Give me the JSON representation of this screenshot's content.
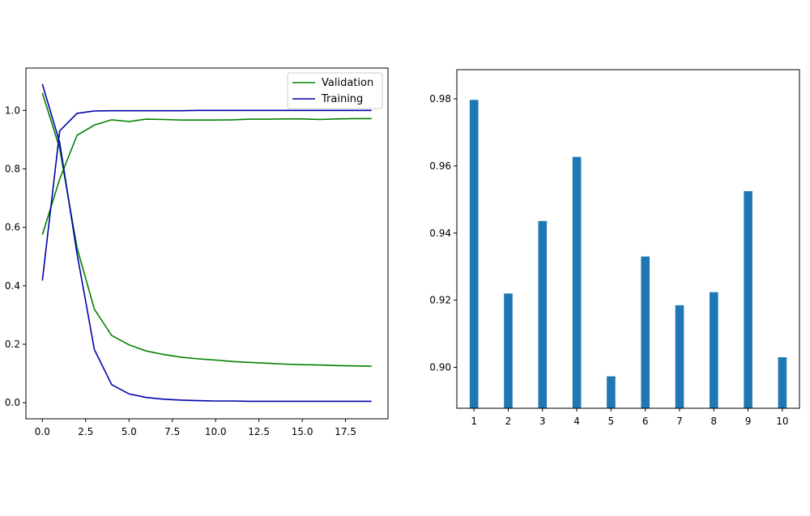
{
  "chart_data": [
    {
      "type": "line",
      "title": "",
      "xlabel": "",
      "ylabel": "",
      "xlim": [
        -0.95,
        19.95
      ],
      "ylim": [
        -0.055,
        1.145
      ],
      "xticks": [
        0,
        2.5,
        5,
        7.5,
        10,
        12.5,
        15,
        17.5
      ],
      "xtick_labels": [
        "0.0",
        "2.5",
        "5.0",
        "7.5",
        "10.0",
        "12.5",
        "15.0",
        "17.5"
      ],
      "yticks": [
        0,
        0.2,
        0.4,
        0.6,
        0.8,
        1.0
      ],
      "ytick_labels": [
        "0.0",
        "0.2",
        "0.4",
        "0.6",
        "0.8",
        "1.0"
      ],
      "legend": {
        "placement": "top-right",
        "entries": [
          "Validation",
          "Training"
        ]
      },
      "grid": false,
      "x": [
        0,
        1,
        2,
        3,
        4,
        5,
        6,
        7,
        8,
        9,
        10,
        11,
        12,
        13,
        14,
        15,
        16,
        17,
        18,
        19
      ],
      "series": [
        {
          "name": "Validation",
          "color": "#008000",
          "lines": [
            [
              0.575,
              0.765,
              0.915,
              0.95,
              0.968,
              0.962,
              0.97,
              0.969,
              0.967,
              0.967,
              0.967,
              0.968,
              0.97,
              0.97,
              0.971,
              0.971,
              0.969,
              0.971,
              0.972,
              0.972
            ],
            [
              1.06,
              0.87,
              0.53,
              0.32,
              0.23,
              0.198,
              0.177,
              0.165,
              0.156,
              0.15,
              0.146,
              0.141,
              0.138,
              0.135,
              0.132,
              0.13,
              0.129,
              0.127,
              0.126,
              0.125
            ]
          ]
        },
        {
          "name": "Training",
          "color": "#0000aa",
          "lines": [
            [
              0.418,
              0.93,
              0.99,
              0.998,
              0.999,
              0.999,
              0.999,
              0.999,
              0.999,
              1.0,
              1.0,
              1.0,
              1.0,
              1.0,
              1.0,
              1.0,
              1.0,
              1.0,
              1.0,
              1.0
            ],
            [
              1.09,
              0.89,
              0.51,
              0.182,
              0.062,
              0.03,
              0.018,
              0.012,
              0.009,
              0.007,
              0.006,
              0.006,
              0.005,
              0.005,
              0.005,
              0.005,
              0.005,
              0.005,
              0.005,
              0.005
            ]
          ]
        }
      ]
    },
    {
      "type": "bar",
      "title": "",
      "xlabel": "",
      "ylabel": "",
      "categories": [
        "1",
        "2",
        "3",
        "4",
        "5",
        "6",
        "7",
        "8",
        "9",
        "10"
      ],
      "values": [
        0.9797,
        0.922,
        0.9436,
        0.9627,
        0.8973,
        0.933,
        0.9185,
        0.9224,
        0.9525,
        0.903
      ],
      "ylim": [
        0.8878,
        0.9887
      ],
      "yticks": [
        0.9,
        0.92,
        0.94,
        0.96,
        0.98
      ],
      "ytick_labels": [
        "0.90",
        "0.92",
        "0.94",
        "0.96",
        "0.98"
      ],
      "color": "#1f77b4",
      "grid": false
    }
  ]
}
